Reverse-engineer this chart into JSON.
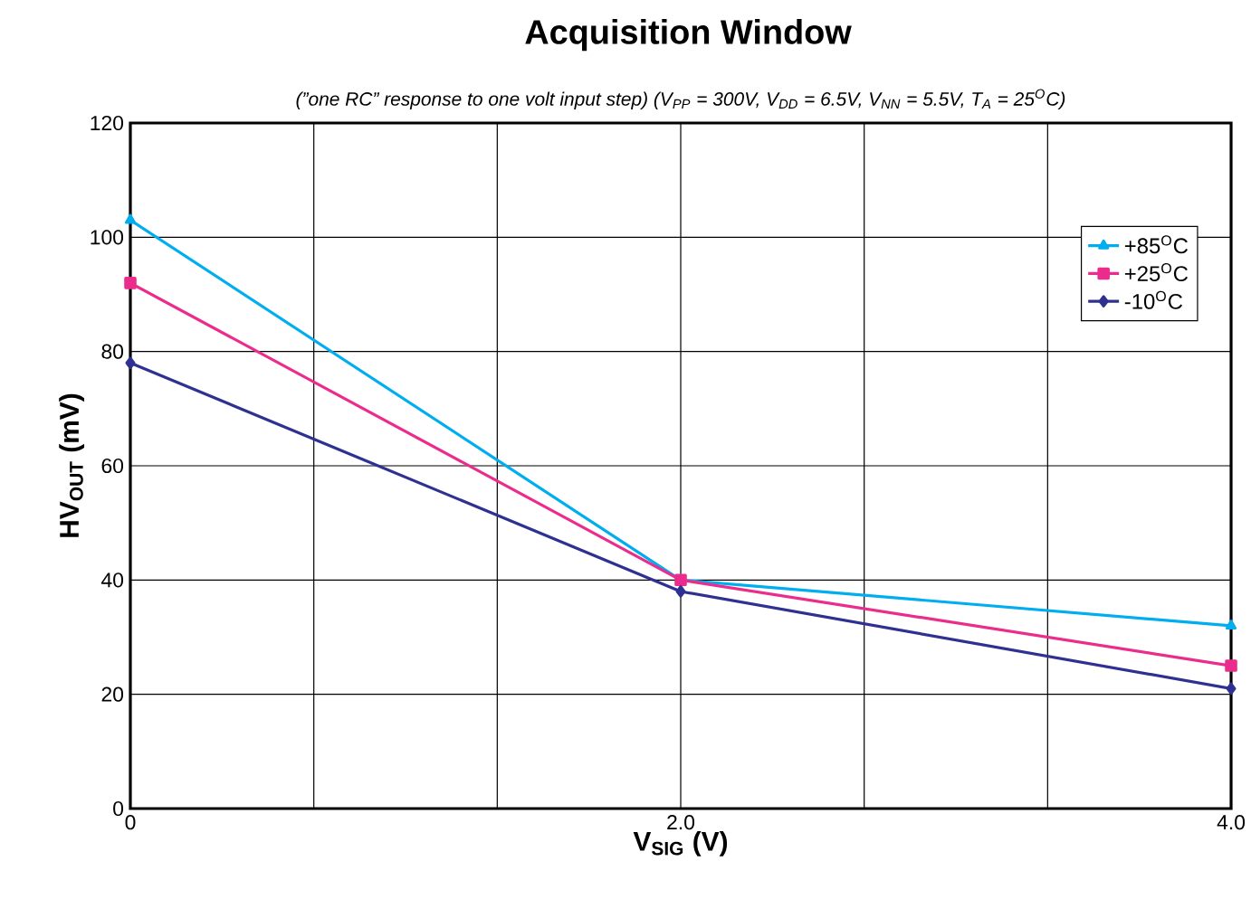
{
  "chart_data": {
    "type": "line",
    "title": "Acquisition Window",
    "subtitle": "(”one RC” response to one volt input step) (V$_{PP}$ = 300V, V$_{DD}$ = 6.5V, V$_{NN}$ = 5.5V, T$_{A}$ = 25$^{O}$C)",
    "xlabel": "V$_{SIG}$ (V)",
    "ylabel": "HV$_{OUT}$ (mV)",
    "x": [
      0,
      2,
      4
    ],
    "series": [
      {
        "name": "+85$^{O}$C",
        "color": "#00aeef",
        "marker": "triangle",
        "values": [
          103,
          40,
          32
        ]
      },
      {
        "name": "+25$^{O}$C",
        "color": "#ec2c8c",
        "marker": "square",
        "values": [
          92,
          40,
          25
        ]
      },
      {
        "name": "-10$^{O}$C",
        "color": "#2e3192",
        "marker": "diamond",
        "values": [
          78,
          38,
          21
        ]
      }
    ],
    "xlim": [
      0,
      4
    ],
    "ylim": [
      0,
      120
    ],
    "xticks": [
      {
        "value": 0,
        "label": "0"
      },
      {
        "value": 0.6667,
        "label": null
      },
      {
        "value": 1.3333,
        "label": null
      },
      {
        "value": 2,
        "label": "2.0"
      },
      {
        "value": 2.6667,
        "label": null
      },
      {
        "value": 3.3333,
        "label": null
      },
      {
        "value": 4,
        "label": "4.0"
      }
    ],
    "yticks": [
      0,
      20,
      40,
      60,
      80,
      100,
      120
    ],
    "grid": true,
    "legend": "top right",
    "line_style": "solid"
  }
}
